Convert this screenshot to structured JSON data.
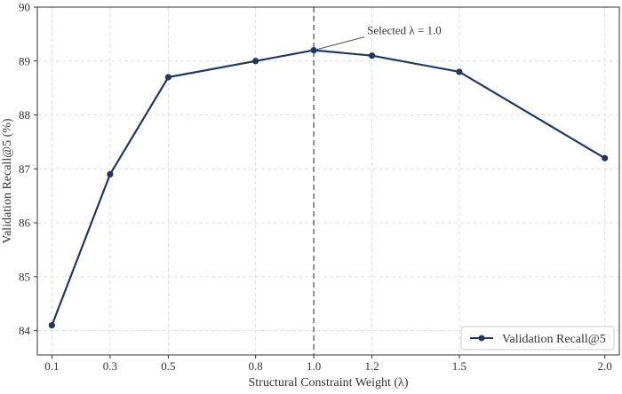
{
  "chart_data": {
    "type": "line",
    "x": [
      0.1,
      0.3,
      0.5,
      0.8,
      1.0,
      1.2,
      1.5,
      2.0
    ],
    "xtick_labels": [
      "0.1",
      "0.3",
      "0.5",
      "0.8",
      "1.0",
      "1.2",
      "1.5",
      "2.0"
    ],
    "series": [
      {
        "name": "Validation Recall@5",
        "values": [
          84.1,
          86.9,
          88.7,
          89.0,
          89.2,
          89.1,
          88.8,
          87.2
        ],
        "color": "#22375a"
      }
    ],
    "xlabel": "Structural Constraint Weight (λ)",
    "ylabel": "Validation Recall@5 (%)",
    "ylim": [
      83.55,
      90.0
    ],
    "yticks": [
      84,
      85,
      86,
      87,
      88,
      89,
      90
    ],
    "grid": true,
    "grid_style": "dashed",
    "legend_position": "bottom-right",
    "vline": {
      "x": 1.0,
      "style": "dashed",
      "color": "#555555"
    },
    "annotation": {
      "text": "Selected λ = 1.0",
      "target_x": 1.0,
      "target_y": 89.2
    }
  }
}
